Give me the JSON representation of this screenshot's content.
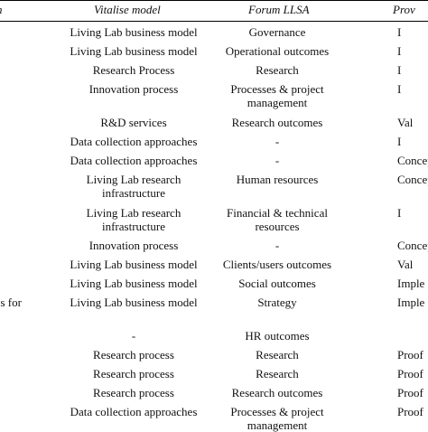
{
  "headers": [
    "n",
    "Vitalise model",
    "Forum LLSA",
    "Prov"
  ],
  "rows": [
    {
      "c0": "",
      "c1": [
        "Living Lab business model"
      ],
      "c2": [
        "Governance"
      ],
      "c3": "I"
    },
    {
      "c0": "",
      "c1": [
        "Living Lab business model"
      ],
      "c2": [
        "Operational outcomes"
      ],
      "c3": "I"
    },
    {
      "c0": "",
      "c1": [
        "Research Process"
      ],
      "c2": [
        "Research"
      ],
      "c3": "I"
    },
    {
      "c0": "",
      "c1": [
        "Innovation process"
      ],
      "c2": [
        "Processes & project",
        "management"
      ],
      "c3": "I"
    },
    {
      "c0": "",
      "c1": [
        "R&D services"
      ],
      "c2": [
        "Research outcomes"
      ],
      "c3": "Val"
    },
    {
      "c0": "",
      "c1": [
        "Data collection approaches"
      ],
      "c2": [
        "-"
      ],
      "c3": "I"
    },
    {
      "c0": "",
      "c1": [
        "Data collection approaches"
      ],
      "c2": [
        "-"
      ],
      "c3": "Concep"
    },
    {
      "c0": "",
      "c1": [
        "Living Lab research",
        "infrastructure"
      ],
      "c2": [
        "Human resources"
      ],
      "c3": "Concep"
    },
    {
      "c0": "",
      "c1": [
        "Living Lab research",
        "infrastructure"
      ],
      "c2": [
        "Financial & technical",
        "resources"
      ],
      "c3": "I"
    },
    {
      "c0": "",
      "c1": [
        "Innovation process"
      ],
      "c2": [
        "-"
      ],
      "c3": "Concep"
    },
    {
      "c0": "",
      "c1": [
        "Living Lab business model"
      ],
      "c2": [
        "Clients/users outcomes"
      ],
      "c3": "Val"
    },
    {
      "c0": "",
      "c1": [
        "Living Lab business model"
      ],
      "c2": [
        "Social outcomes"
      ],
      "c3": "Imple"
    },
    {
      "c0": "ns for",
      "c1": [
        "Living Lab business model"
      ],
      "c2": [
        "Strategy"
      ],
      "c3": "Imple"
    },
    {
      "c0": "",
      "c1": [
        "-"
      ],
      "c2": [
        "HR outcomes"
      ],
      "c3": ""
    },
    {
      "c0": "",
      "c1": [
        "Research process"
      ],
      "c2": [
        "Research"
      ],
      "c3": "Proof"
    },
    {
      "c0": "",
      "c1": [
        "Research process"
      ],
      "c2": [
        "Research"
      ],
      "c3": "Proof"
    },
    {
      "c0": "",
      "c1": [
        "Research process"
      ],
      "c2": [
        "Research outcomes"
      ],
      "c3": "Proof"
    },
    {
      "c0": "",
      "c1": [
        "Data collection approaches"
      ],
      "c2": [
        "Processes & project",
        "management"
      ],
      "c3": "Proof"
    }
  ]
}
